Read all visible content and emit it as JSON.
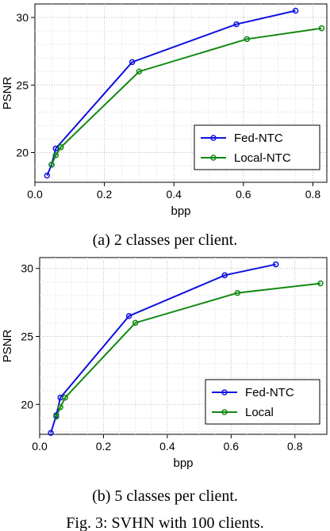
{
  "chart_data": [
    {
      "type": "line",
      "title": "",
      "xlabel": "bpp",
      "ylabel": "PSNR",
      "xlim": [
        0.0,
        0.84
      ],
      "ylim": [
        17.8,
        31.0
      ],
      "xticks": [
        "0.0",
        "0.2",
        "0.4",
        "0.6",
        "0.8"
      ],
      "yticks": [
        "20",
        "25",
        "30"
      ],
      "grid": true,
      "legend_position": "bottom-right",
      "series": [
        {
          "name": "Fed-NTC",
          "color": "#1010e0",
          "x": [
            0.035,
            0.048,
            0.06,
            0.28,
            0.58,
            0.75
          ],
          "y": [
            18.3,
            19.1,
            20.3,
            26.7,
            29.5,
            30.5
          ]
        },
        {
          "name": "Local-NTC",
          "color": "#118811",
          "x": [
            0.048,
            0.06,
            0.075,
            0.3,
            0.61,
            0.825
          ],
          "y": [
            19.1,
            19.8,
            20.4,
            26.0,
            28.4,
            29.2
          ]
        }
      ],
      "caption": "(a) 2 classes per client."
    },
    {
      "type": "line",
      "title": "",
      "xlabel": "bpp",
      "ylabel": "PSNR",
      "xlim": [
        0.0,
        0.9
      ],
      "ylim": [
        17.8,
        30.8
      ],
      "xticks": [
        "0.0",
        "0.2",
        "0.4",
        "0.6",
        "0.8"
      ],
      "yticks": [
        "20",
        "25",
        "30"
      ],
      "grid": true,
      "legend_position": "bottom-right",
      "series": [
        {
          "name": "Fed-NTC",
          "color": "#1010e0",
          "x": [
            0.035,
            0.052,
            0.065,
            0.28,
            0.58,
            0.74
          ],
          "y": [
            17.9,
            19.2,
            20.5,
            26.5,
            29.5,
            30.3
          ]
        },
        {
          "name": "Local",
          "color": "#118811",
          "x": [
            0.052,
            0.065,
            0.08,
            0.3,
            0.62,
            0.88
          ],
          "y": [
            19.1,
            19.8,
            20.5,
            26.0,
            28.2,
            28.9
          ]
        }
      ],
      "caption": "(b) 5 classes per client."
    }
  ],
  "figure_caption": "Fig. 3: SVHN with 100 clients."
}
